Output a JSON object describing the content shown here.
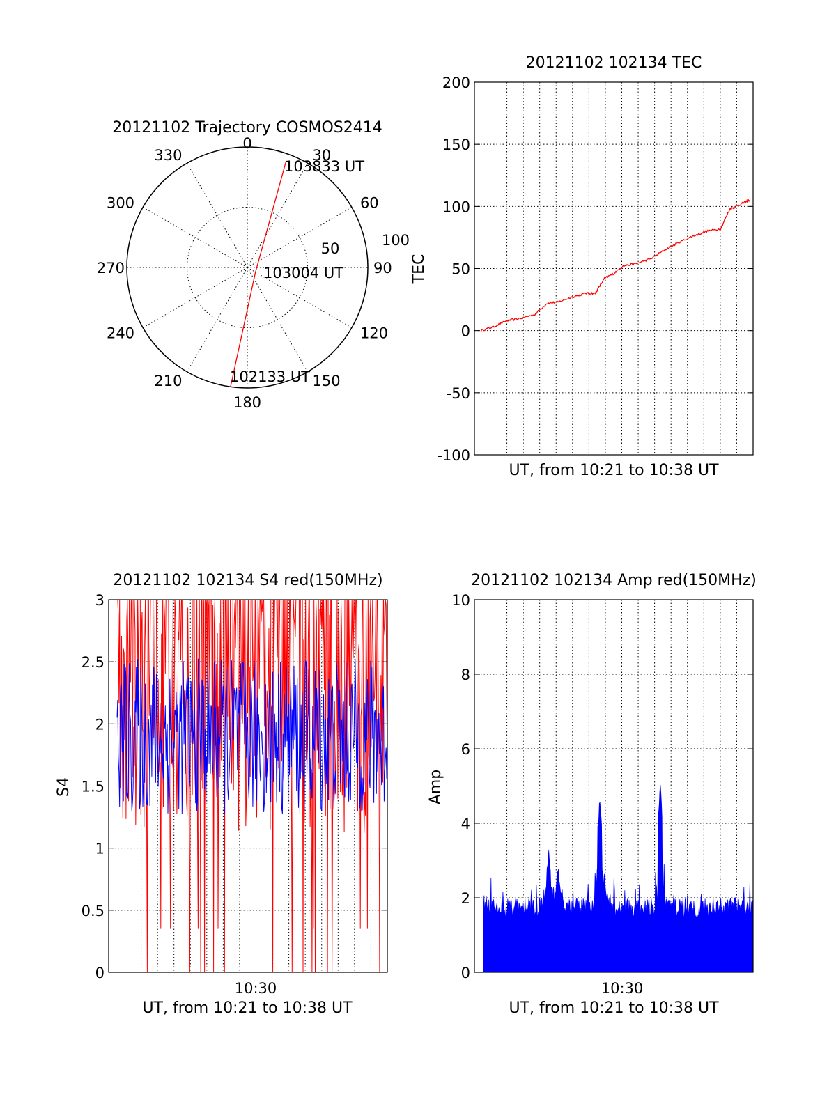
{
  "chart_data": [
    {
      "type": "polar",
      "title": "20121102 Trajectory COSMOS2414",
      "angle_labels": [
        "0",
        "30",
        "60",
        "90",
        "120",
        "150",
        "180",
        "210",
        "240",
        "270",
        "300",
        "330"
      ],
      "radial_labels": [
        "50",
        "100"
      ],
      "trajectory": {
        "color": "#ff0000",
        "points": [
          {
            "time": "102133 UT",
            "azimuth": 188,
            "zenith": 90
          },
          {
            "time": "103004 UT",
            "azimuth": 120,
            "zenith": 7
          },
          {
            "time": "103833 UT",
            "azimuth": 20,
            "zenith": 85
          }
        ]
      }
    },
    {
      "type": "line",
      "title": "20121102 102134 TEC",
      "xlabel": "UT, from 10:21 to 10:38 UT",
      "ylabel": "TEC",
      "ylim": [
        -100,
        200
      ],
      "yticks": [
        "-100",
        "-50",
        "0",
        "50",
        "100",
        "150",
        "200"
      ],
      "xlim": [
        10.35,
        10.65
      ],
      "grid": true,
      "series": [
        {
          "color": "#ff0000",
          "x": [
            10.357,
            10.37,
            10.385,
            10.4,
            10.415,
            10.428,
            10.44,
            10.455,
            10.47,
            10.48,
            10.49,
            10.5,
            10.51,
            10.525,
            10.54,
            10.555,
            10.57,
            10.585,
            10.6,
            10.615,
            10.625,
            10.632,
            10.64,
            10.646
          ],
          "y": [
            0,
            3,
            8,
            10,
            13,
            22,
            23,
            27,
            30,
            30,
            42,
            46,
            52,
            54,
            58,
            65,
            71,
            76,
            80,
            82,
            98,
            100,
            103,
            105
          ]
        }
      ]
    },
    {
      "type": "line",
      "title": "20121102 102134 S4 red(150MHz)",
      "xlabel": "UT, from 10:21 to 10:38 UT",
      "ylabel": "S4",
      "ylim": [
        0,
        3
      ],
      "yticks": [
        "0",
        "0.5",
        "1",
        "1.5",
        "2",
        "2.5",
        "3"
      ],
      "xticks": [
        {
          "value": 10.5,
          "label": "10:30"
        }
      ],
      "xlim": [
        10.35,
        10.65
      ],
      "grid": true,
      "series": [
        {
          "color": "#ff0000",
          "level": 2.3,
          "spread": 0.75
        },
        {
          "color": "#0000ff",
          "level": 1.9,
          "spread": 0.45
        }
      ]
    },
    {
      "type": "bar",
      "title": "20121102 102134 Amp red(150MHz)",
      "xlabel": "UT, from 10:21 to 10:38 UT",
      "ylabel": "Amp",
      "ylim": [
        0,
        10
      ],
      "yticks": [
        "0",
        "2",
        "4",
        "6",
        "8",
        "10"
      ],
      "xticks": [
        {
          "value": 10.5,
          "label": "10:30"
        }
      ],
      "xlim": [
        10.35,
        10.65
      ],
      "grid": true,
      "series": [
        {
          "color": "#0000ff",
          "baseline": 1.8,
          "peaks": [
            {
              "x": 10.43,
              "y": 3.4
            },
            {
              "x": 10.44,
              "y": 3.0
            },
            {
              "x": 10.485,
              "y": 4.7
            },
            {
              "x": 10.49,
              "y": 2.8
            },
            {
              "x": 10.55,
              "y": 5.1
            }
          ]
        }
      ]
    }
  ]
}
